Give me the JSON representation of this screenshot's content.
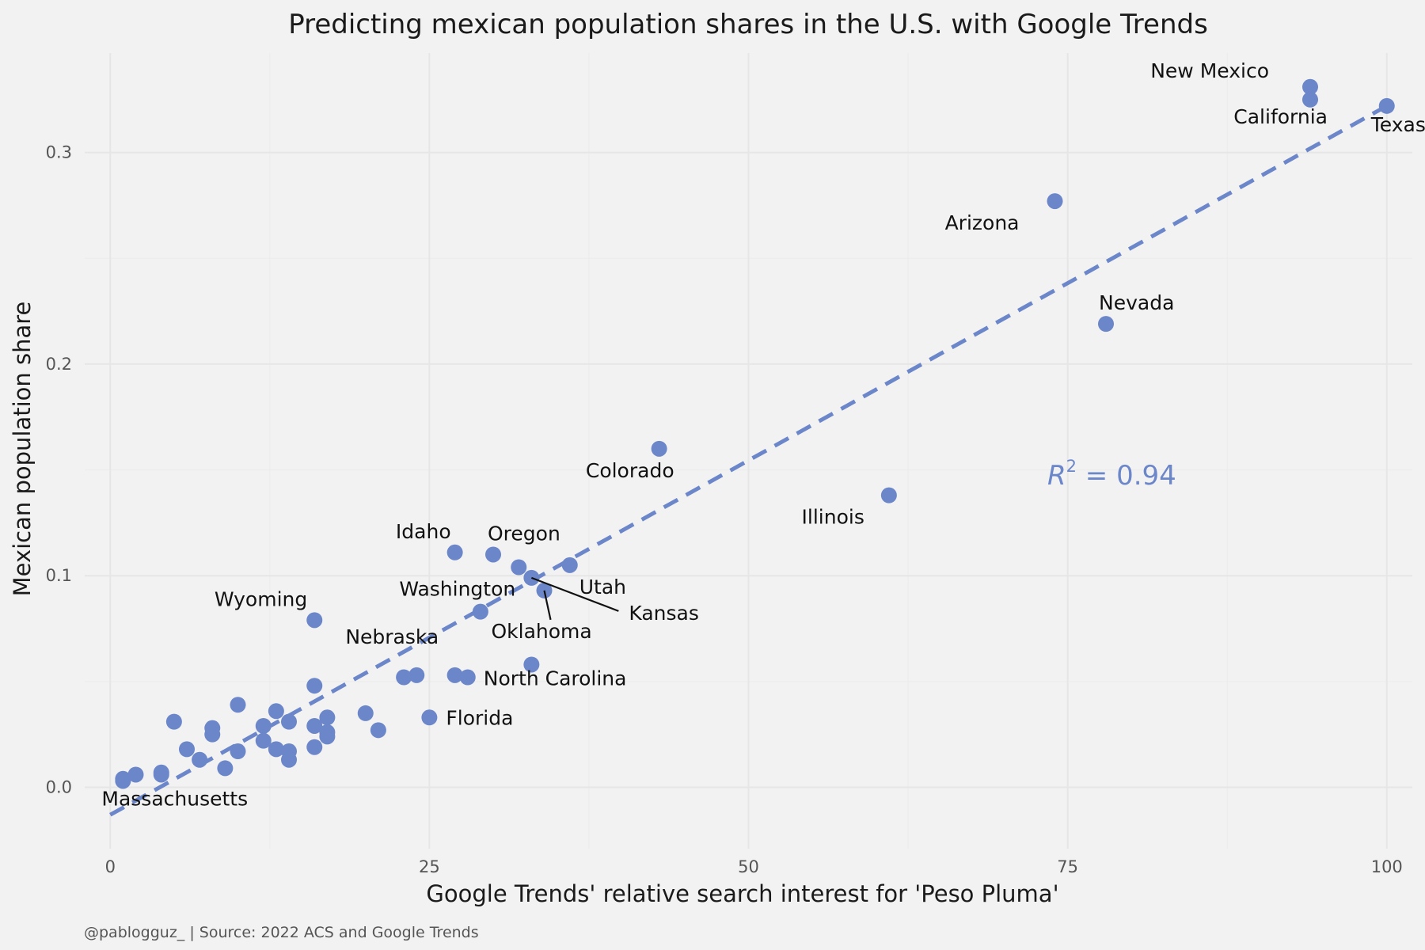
{
  "chart_data": {
    "type": "scatter",
    "title": "Predicting mexican population shares in the U.S. with Google Trends",
    "xlabel": "Google Trends' relative search interest for 'Peso Pluma'",
    "ylabel": "Mexican population share",
    "caption": "@pablogguz_ | Source: 2022 ACS and Google Trends",
    "xlim": [
      -2,
      102
    ],
    "ylim": [
      -0.029,
      0.347
    ],
    "x_ticks": [
      0,
      25,
      50,
      75,
      100
    ],
    "y_ticks": [
      0.0,
      0.1,
      0.2,
      0.3
    ],
    "x_tick_labels": [
      "0",
      "25",
      "50",
      "75",
      "100"
    ],
    "y_tick_labels": [
      "0.0",
      "0.1",
      "0.2",
      "0.3"
    ],
    "grid": true,
    "point_color": "#6b86c9",
    "trend_line": {
      "style": "dashed",
      "color": "#6b86c9",
      "x": [
        0,
        100
      ],
      "y": [
        -0.013,
        0.322
      ]
    },
    "annotation": {
      "base": "R",
      "exponent": "2",
      "rest": " = 0.94"
    },
    "points": [
      {
        "x": 94,
        "y": 0.331,
        "label": "New Mexico"
      },
      {
        "x": 94,
        "y": 0.325,
        "label": "California"
      },
      {
        "x": 100,
        "y": 0.322,
        "label": "Texas"
      },
      {
        "x": 74,
        "y": 0.277,
        "label": "Arizona"
      },
      {
        "x": 78,
        "y": 0.219,
        "label": "Nevada"
      },
      {
        "x": 43,
        "y": 0.16,
        "label": "Colorado"
      },
      {
        "x": 61,
        "y": 0.138,
        "label": "Illinois"
      },
      {
        "x": 27,
        "y": 0.111,
        "label": "Idaho"
      },
      {
        "x": 30,
        "y": 0.11,
        "label": "Oregon"
      },
      {
        "x": 36,
        "y": 0.105,
        "label": "Utah"
      },
      {
        "x": 32,
        "y": 0.104,
        "label": "Washington"
      },
      {
        "x": 33,
        "y": 0.099,
        "label": "Kansas"
      },
      {
        "x": 34,
        "y": 0.093,
        "label": "Oklahoma"
      },
      {
        "x": 29,
        "y": 0.083,
        "label": ""
      },
      {
        "x": 16,
        "y": 0.079,
        "label": "Wyoming"
      },
      {
        "x": 33,
        "y": 0.058,
        "label": ""
      },
      {
        "x": 24,
        "y": 0.053,
        "label": "Nebraska"
      },
      {
        "x": 23,
        "y": 0.052,
        "label": ""
      },
      {
        "x": 27,
        "y": 0.053,
        "label": ""
      },
      {
        "x": 28,
        "y": 0.052,
        "label": "North Carolina"
      },
      {
        "x": 16,
        "y": 0.048,
        "label": ""
      },
      {
        "x": 10,
        "y": 0.039,
        "label": ""
      },
      {
        "x": 13,
        "y": 0.036,
        "label": ""
      },
      {
        "x": 20,
        "y": 0.035,
        "label": ""
      },
      {
        "x": 25,
        "y": 0.033,
        "label": "Florida"
      },
      {
        "x": 17,
        "y": 0.033,
        "label": ""
      },
      {
        "x": 5,
        "y": 0.031,
        "label": ""
      },
      {
        "x": 14,
        "y": 0.031,
        "label": ""
      },
      {
        "x": 12,
        "y": 0.029,
        "label": ""
      },
      {
        "x": 16,
        "y": 0.029,
        "label": ""
      },
      {
        "x": 8,
        "y": 0.028,
        "label": ""
      },
      {
        "x": 21,
        "y": 0.027,
        "label": ""
      },
      {
        "x": 17,
        "y": 0.026,
        "label": ""
      },
      {
        "x": 8,
        "y": 0.025,
        "label": ""
      },
      {
        "x": 17,
        "y": 0.024,
        "label": ""
      },
      {
        "x": 12,
        "y": 0.022,
        "label": ""
      },
      {
        "x": 16,
        "y": 0.019,
        "label": ""
      },
      {
        "x": 6,
        "y": 0.018,
        "label": ""
      },
      {
        "x": 13,
        "y": 0.018,
        "label": ""
      },
      {
        "x": 10,
        "y": 0.017,
        "label": ""
      },
      {
        "x": 14,
        "y": 0.017,
        "label": ""
      },
      {
        "x": 7,
        "y": 0.013,
        "label": ""
      },
      {
        "x": 14,
        "y": 0.013,
        "label": ""
      },
      {
        "x": 9,
        "y": 0.009,
        "label": ""
      },
      {
        "x": 4,
        "y": 0.007,
        "label": ""
      },
      {
        "x": 2,
        "y": 0.006,
        "label": ""
      },
      {
        "x": 4,
        "y": 0.006,
        "label": ""
      },
      {
        "x": 1,
        "y": 0.004,
        "label": ""
      },
      {
        "x": 1,
        "y": 0.003,
        "label": "Massachusetts"
      }
    ]
  }
}
